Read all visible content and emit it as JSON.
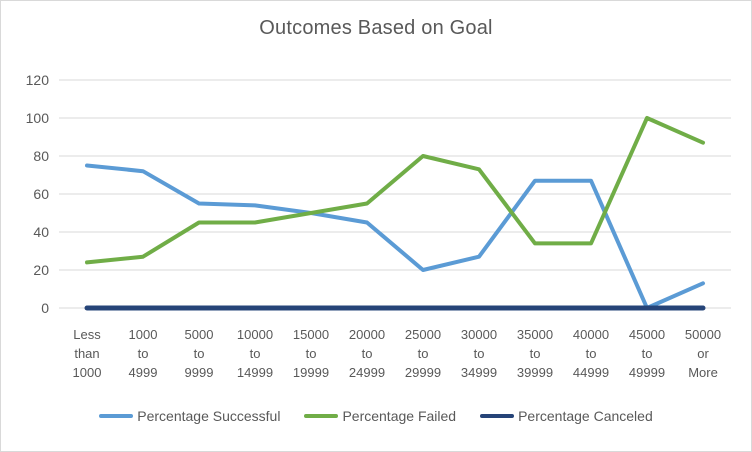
{
  "chart_data": {
    "type": "line",
    "title": "Outcomes Based on Goal",
    "categories": [
      "Less than 1000",
      "1000 to 4999",
      "5000 to 9999",
      "10000 to 14999",
      "15000 to 19999",
      "20000 to 24999",
      "25000 to 29999",
      "30000 to 34999",
      "35000 to 39999",
      "40000 to 44999",
      "45000 to 49999",
      "50000 or More"
    ],
    "series": [
      {
        "name": "Percentage Successful",
        "color": "#5B9BD5",
        "values": [
          75,
          72,
          55,
          54,
          50,
          45,
          20,
          27,
          67,
          67,
          0,
          13
        ]
      },
      {
        "name": "Percentage Failed",
        "color": "#70AD47",
        "values": [
          24,
          27,
          45,
          45,
          50,
          55,
          80,
          73,
          34,
          34,
          100,
          87
        ]
      },
      {
        "name": "Percentage Canceled",
        "color": "#264478",
        "values": [
          0,
          0,
          0,
          0,
          0,
          0,
          0,
          0,
          0,
          0,
          0,
          0
        ]
      }
    ],
    "xlabel": "",
    "ylabel": "",
    "ylim": [
      0,
      120
    ],
    "yticks": [
      0,
      20,
      40,
      60,
      80,
      100,
      120
    ],
    "grid": true,
    "legend_position": "bottom",
    "axis_text_color": "#595959",
    "gridline_color": "#d9d9d9",
    "background_color": "#ffffff",
    "border_color": "#d9d9d9"
  }
}
